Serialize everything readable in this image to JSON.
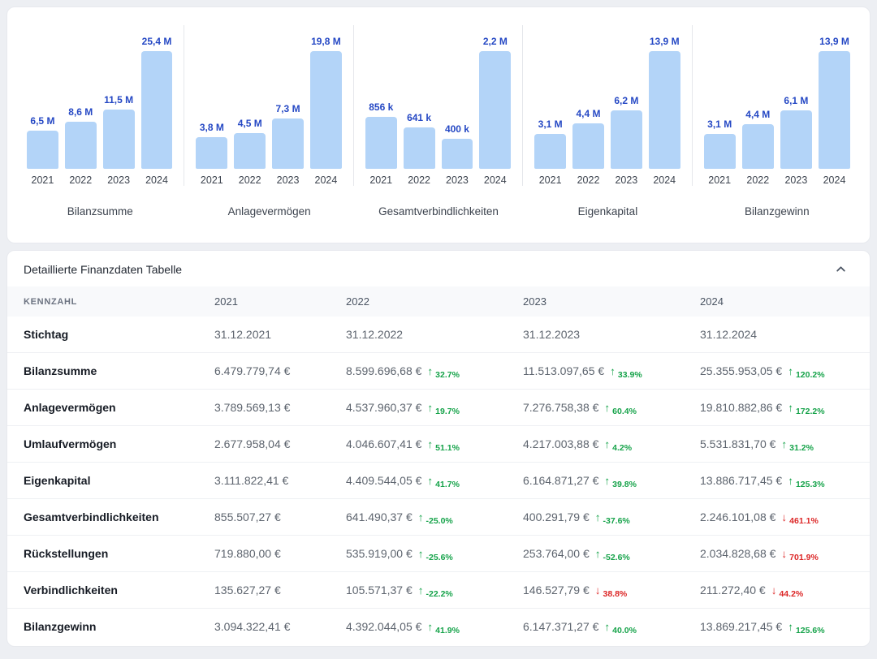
{
  "colors": {
    "page_background": "#edeff3",
    "bar_fill": "#b3d4f8",
    "bar_value_label": "#2548c4",
    "positive": "#16a34a",
    "negative": "#dc2626"
  },
  "chart_data": [
    {
      "type": "bar",
      "title": "Bilanzsumme",
      "categories": [
        "2021",
        "2022",
        "2023",
        "2024"
      ],
      "values": [
        6479779.74,
        8599696.68,
        11513097.65,
        25355953.05
      ],
      "value_labels": [
        "6,5 M",
        "8,6 M",
        "11,5 M",
        "25,4 M"
      ]
    },
    {
      "type": "bar",
      "title": "Anlagevermögen",
      "categories": [
        "2021",
        "2022",
        "2023",
        "2024"
      ],
      "values": [
        3789569.13,
        4537960.37,
        7276758.38,
        19810882.86
      ],
      "value_labels": [
        "3,8 M",
        "4,5 M",
        "7,3 M",
        "19,8 M"
      ]
    },
    {
      "type": "bar",
      "title": "Gesamtverbindlichkeiten",
      "categories": [
        "2021",
        "2022",
        "2023",
        "2024"
      ],
      "values": [
        855507.27,
        641490.37,
        400291.79,
        2246101.08
      ],
      "value_labels": [
        "856 k",
        "641 k",
        "400 k",
        "2,2 M"
      ]
    },
    {
      "type": "bar",
      "title": "Eigenkapital",
      "categories": [
        "2021",
        "2022",
        "2023",
        "2024"
      ],
      "values": [
        3111822.41,
        4409544.05,
        6164871.27,
        13886717.45
      ],
      "value_labels": [
        "3,1 M",
        "4,4 M",
        "6,2 M",
        "13,9 M"
      ]
    },
    {
      "type": "bar",
      "title": "Bilanzgewinn",
      "categories": [
        "2021",
        "2022",
        "2023",
        "2024"
      ],
      "values": [
        3094322.41,
        4392044.05,
        6147371.27,
        13869217.45
      ],
      "value_labels": [
        "3,1 M",
        "4,4 M",
        "6,1 M",
        "13,9 M"
      ]
    }
  ],
  "table": {
    "title": "Detaillierte Finanzdaten Tabelle",
    "collapse_icon": "chevron-up",
    "columns": [
      "KENNZAHL",
      "2021",
      "2022",
      "2023",
      "2024"
    ],
    "rows": [
      {
        "label": "Stichtag",
        "cells": [
          {
            "text": "31.12.2021"
          },
          {
            "text": "31.12.2022"
          },
          {
            "text": "31.12.2023"
          },
          {
            "text": "31.12.2024"
          }
        ]
      },
      {
        "label": "Bilanzsumme",
        "cells": [
          {
            "text": "6.479.779,74 €"
          },
          {
            "text": "8.599.696,68 €",
            "trend": {
              "dir": "up",
              "pct": "32.7%",
              "tone": "green"
            }
          },
          {
            "text": "11.513.097,65 €",
            "trend": {
              "dir": "up",
              "pct": "33.9%",
              "tone": "green"
            }
          },
          {
            "text": "25.355.953,05 €",
            "trend": {
              "dir": "up",
              "pct": "120.2%",
              "tone": "green"
            }
          }
        ]
      },
      {
        "label": "Anlagevermögen",
        "cells": [
          {
            "text": "3.789.569,13 €"
          },
          {
            "text": "4.537.960,37 €",
            "trend": {
              "dir": "up",
              "pct": "19.7%",
              "tone": "green"
            }
          },
          {
            "text": "7.276.758,38 €",
            "trend": {
              "dir": "up",
              "pct": "60.4%",
              "tone": "green"
            }
          },
          {
            "text": "19.810.882,86 €",
            "trend": {
              "dir": "up",
              "pct": "172.2%",
              "tone": "green"
            }
          }
        ]
      },
      {
        "label": "Umlaufvermögen",
        "cells": [
          {
            "text": "2.677.958,04 €"
          },
          {
            "text": "4.046.607,41 €",
            "trend": {
              "dir": "up",
              "pct": "51.1%",
              "tone": "green"
            }
          },
          {
            "text": "4.217.003,88 €",
            "trend": {
              "dir": "up",
              "pct": "4.2%",
              "tone": "green"
            }
          },
          {
            "text": "5.531.831,70 €",
            "trend": {
              "dir": "up",
              "pct": "31.2%",
              "tone": "green"
            }
          }
        ]
      },
      {
        "label": "Eigenkapital",
        "cells": [
          {
            "text": "3.111.822,41 €"
          },
          {
            "text": "4.409.544,05 €",
            "trend": {
              "dir": "up",
              "pct": "41.7%",
              "tone": "green"
            }
          },
          {
            "text": "6.164.871,27 €",
            "trend": {
              "dir": "up",
              "pct": "39.8%",
              "tone": "green"
            }
          },
          {
            "text": "13.886.717,45 €",
            "trend": {
              "dir": "up",
              "pct": "125.3%",
              "tone": "green"
            }
          }
        ]
      },
      {
        "label": "Gesamtverbindlichkeiten",
        "cells": [
          {
            "text": "855.507,27 €"
          },
          {
            "text": "641.490,37 €",
            "trend": {
              "dir": "up",
              "pct": "-25.0%",
              "tone": "green"
            }
          },
          {
            "text": "400.291,79 €",
            "trend": {
              "dir": "up",
              "pct": "-37.6%",
              "tone": "green"
            }
          },
          {
            "text": "2.246.101,08 €",
            "trend": {
              "dir": "down",
              "pct": "461.1%",
              "tone": "red"
            }
          }
        ]
      },
      {
        "label": "Rückstellungen",
        "cells": [
          {
            "text": "719.880,00 €"
          },
          {
            "text": "535.919,00 €",
            "trend": {
              "dir": "up",
              "pct": "-25.6%",
              "tone": "green"
            }
          },
          {
            "text": "253.764,00 €",
            "trend": {
              "dir": "up",
              "pct": "-52.6%",
              "tone": "green"
            }
          },
          {
            "text": "2.034.828,68 €",
            "trend": {
              "dir": "down",
              "pct": "701.9%",
              "tone": "red"
            }
          }
        ]
      },
      {
        "label": "Verbindlichkeiten",
        "cells": [
          {
            "text": "135.627,27 €"
          },
          {
            "text": "105.571,37 €",
            "trend": {
              "dir": "up",
              "pct": "-22.2%",
              "tone": "green"
            }
          },
          {
            "text": "146.527,79 €",
            "trend": {
              "dir": "down",
              "pct": "38.8%",
              "tone": "red"
            }
          },
          {
            "text": "211.272,40 €",
            "trend": {
              "dir": "down",
              "pct": "44.2%",
              "tone": "red"
            }
          }
        ]
      },
      {
        "label": "Bilanzgewinn",
        "cells": [
          {
            "text": "3.094.322,41 €"
          },
          {
            "text": "4.392.044,05 €",
            "trend": {
              "dir": "up",
              "pct": "41.9%",
              "tone": "green"
            }
          },
          {
            "text": "6.147.371,27 €",
            "trend": {
              "dir": "up",
              "pct": "40.0%",
              "tone": "green"
            }
          },
          {
            "text": "13.869.217,45 €",
            "trend": {
              "dir": "up",
              "pct": "125.6%",
              "tone": "green"
            }
          }
        ]
      }
    ]
  }
}
